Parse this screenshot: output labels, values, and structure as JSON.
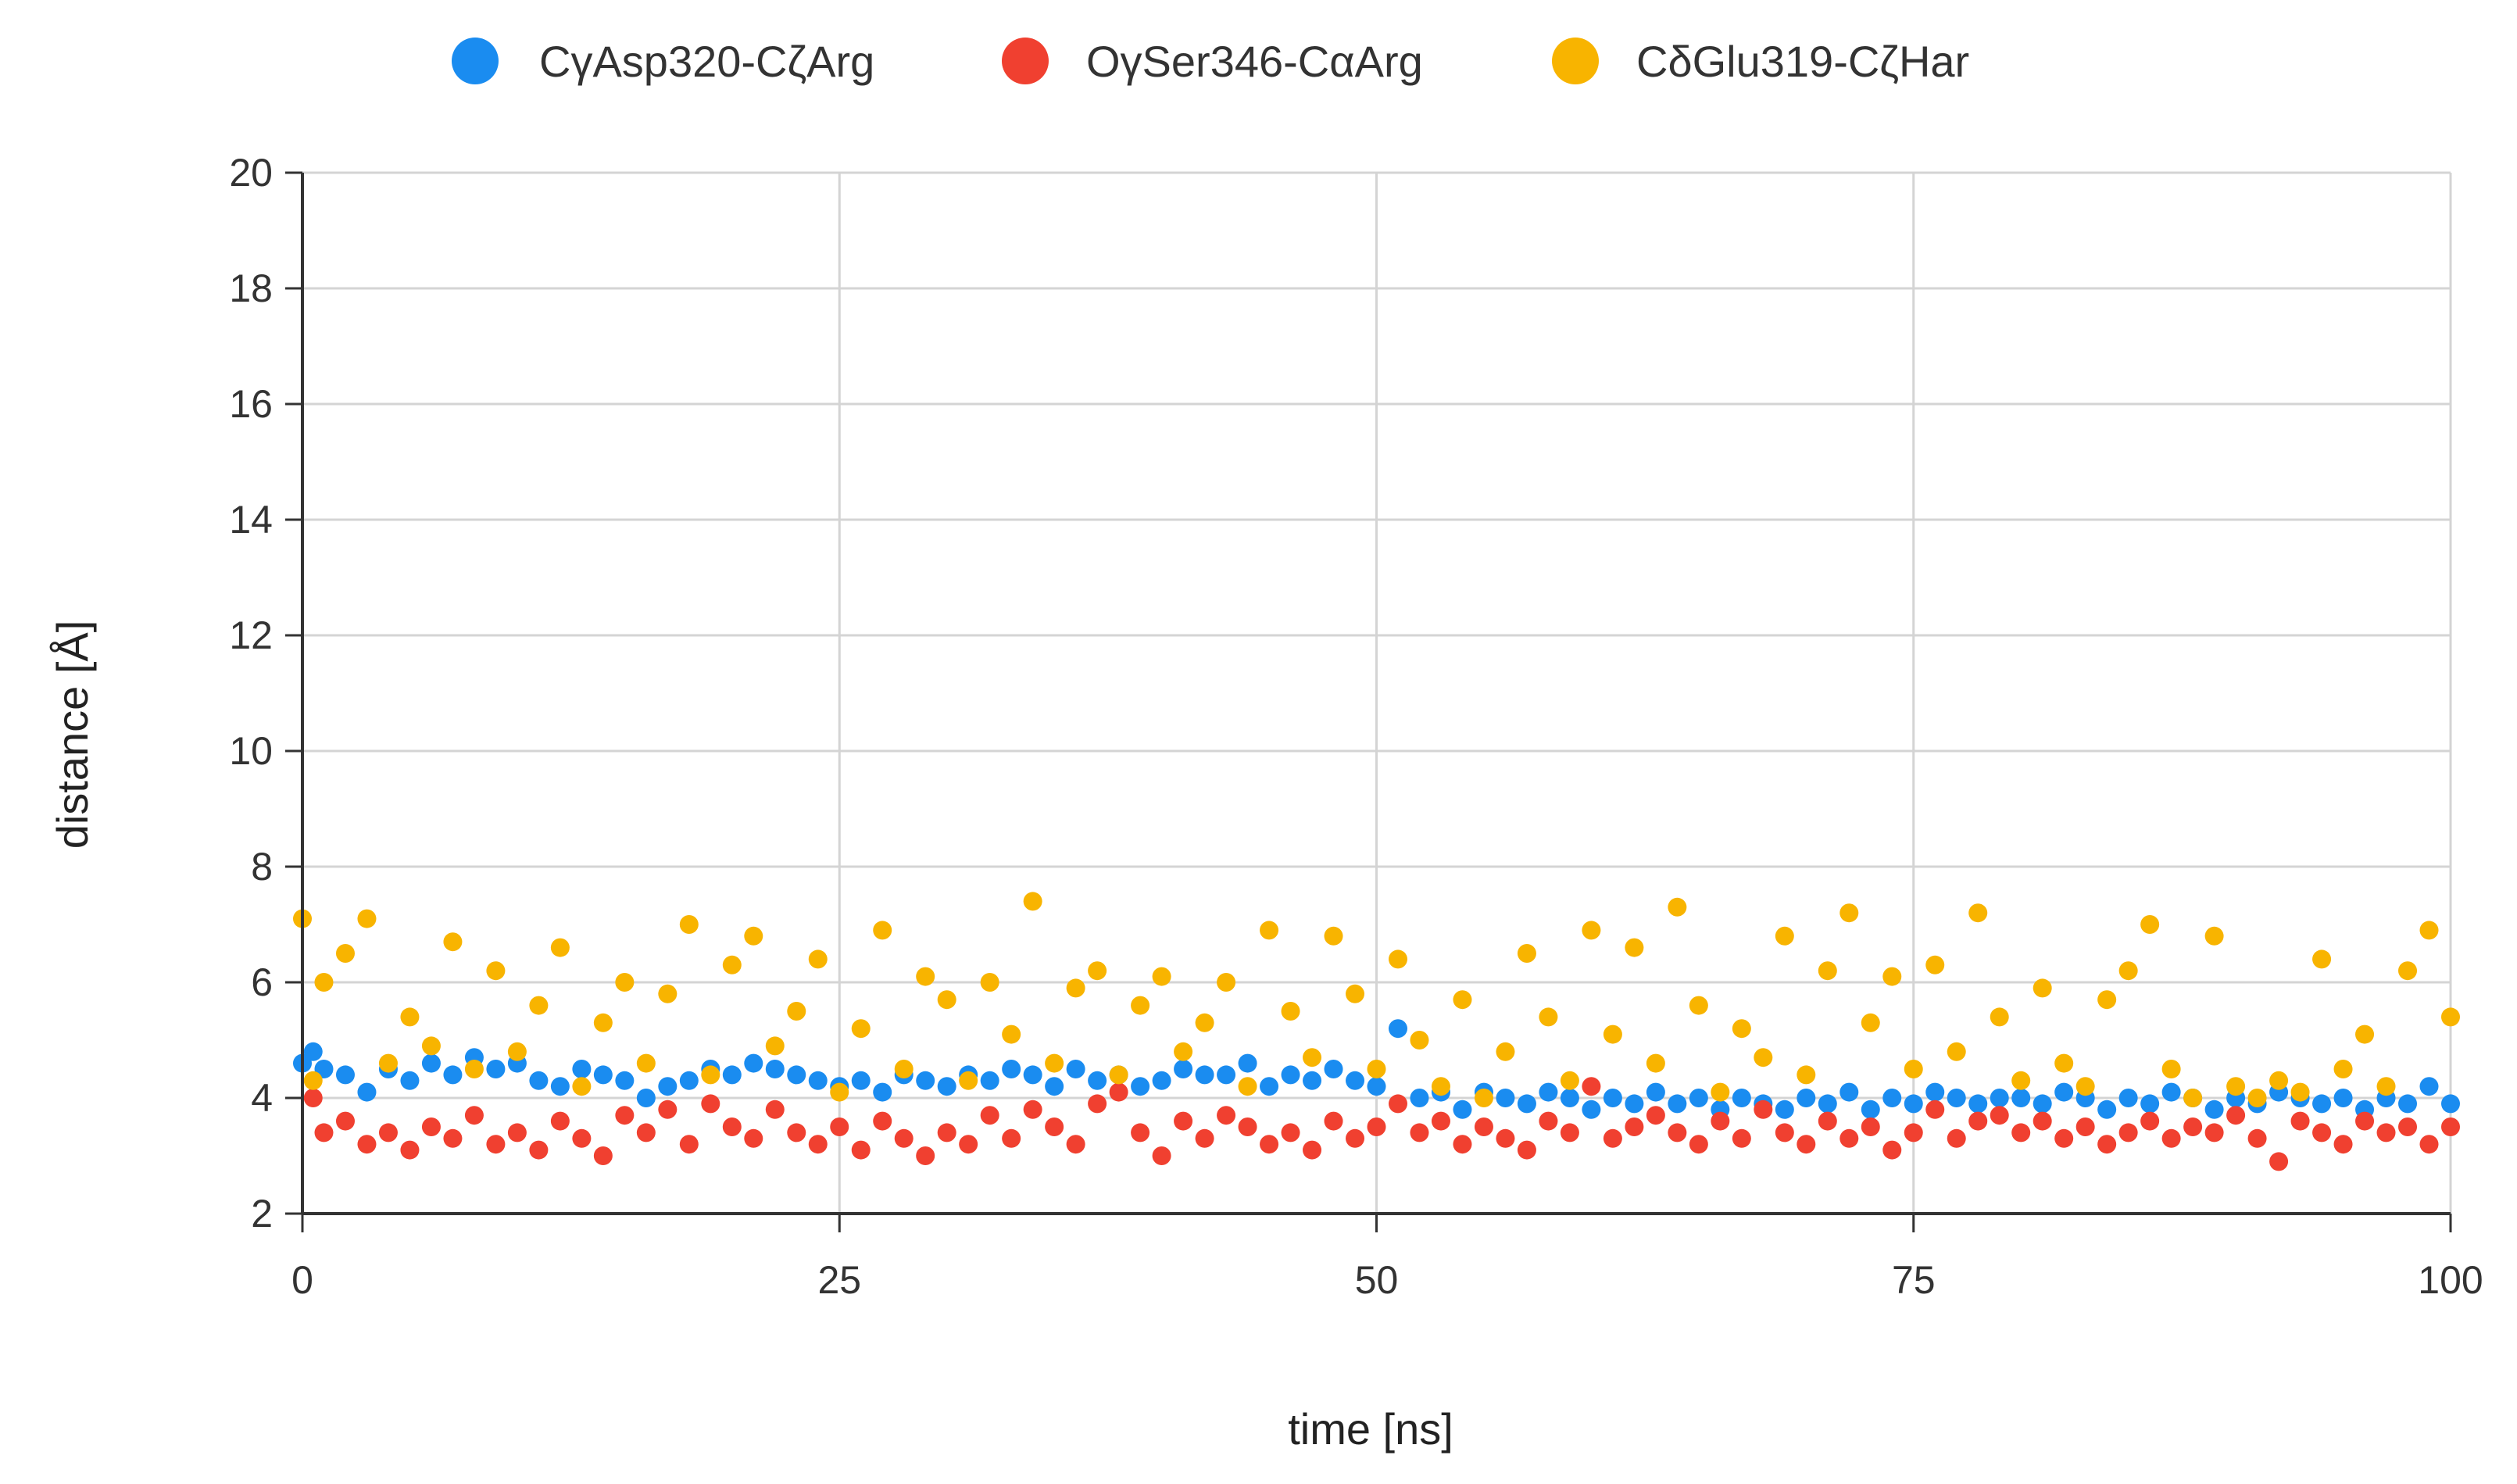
{
  "chart_data": {
    "type": "scatter",
    "title": "",
    "xlabel": "time [ns]",
    "ylabel": "distance [Å]",
    "xlim": [
      0,
      100
    ],
    "ylim": [
      2,
      20
    ],
    "x_ticks": [
      "0",
      "25",
      "50",
      "75",
      "100"
    ],
    "y_ticks": [
      "2",
      "4",
      "6",
      "8",
      "10",
      "12",
      "14",
      "16",
      "18",
      "20"
    ],
    "grid": true,
    "legend_position": "top",
    "series": [
      {
        "name": "CγAsp320-CζArg",
        "color": "#1a8cf0",
        "points": [
          [
            0.0,
            4.6
          ],
          [
            0.5,
            4.8
          ],
          [
            1.0,
            4.5
          ],
          [
            2.0,
            4.4
          ],
          [
            3.0,
            4.1
          ],
          [
            4.0,
            4.5
          ],
          [
            5.0,
            4.3
          ],
          [
            6.0,
            4.6
          ],
          [
            7.0,
            4.4
          ],
          [
            8.0,
            4.7
          ],
          [
            9.0,
            4.5
          ],
          [
            10.0,
            4.6
          ],
          [
            11.0,
            4.3
          ],
          [
            12.0,
            4.2
          ],
          [
            13.0,
            4.5
          ],
          [
            14.0,
            4.4
          ],
          [
            15.0,
            4.3
          ],
          [
            16.0,
            4.0
          ],
          [
            17.0,
            4.2
          ],
          [
            18.0,
            4.3
          ],
          [
            19.0,
            4.5
          ],
          [
            20.0,
            4.4
          ],
          [
            21.0,
            4.6
          ],
          [
            22.0,
            4.5
          ],
          [
            23.0,
            4.4
          ],
          [
            24.0,
            4.3
          ],
          [
            25.0,
            4.2
          ],
          [
            26.0,
            4.3
          ],
          [
            27.0,
            4.1
          ],
          [
            28.0,
            4.4
          ],
          [
            29.0,
            4.3
          ],
          [
            30.0,
            4.2
          ],
          [
            31.0,
            4.4
          ],
          [
            32.0,
            4.3
          ],
          [
            33.0,
            4.5
          ],
          [
            34.0,
            4.4
          ],
          [
            35.0,
            4.2
          ],
          [
            36.0,
            4.5
          ],
          [
            37.0,
            4.3
          ],
          [
            38.0,
            4.4
          ],
          [
            39.0,
            4.2
          ],
          [
            40.0,
            4.3
          ],
          [
            41.0,
            4.5
          ],
          [
            42.0,
            4.4
          ],
          [
            43.0,
            4.4
          ],
          [
            44.0,
            4.6
          ],
          [
            45.0,
            4.2
          ],
          [
            46.0,
            4.4
          ],
          [
            47.0,
            4.3
          ],
          [
            48.0,
            4.5
          ],
          [
            49.0,
            4.3
          ],
          [
            50.0,
            4.2
          ],
          [
            51.0,
            5.2
          ],
          [
            52.0,
            4.0
          ],
          [
            53.0,
            4.1
          ],
          [
            54.0,
            3.8
          ],
          [
            55.0,
            4.1
          ],
          [
            56.0,
            4.0
          ],
          [
            57.0,
            3.9
          ],
          [
            58.0,
            4.1
          ],
          [
            59.0,
            4.0
          ],
          [
            60.0,
            3.8
          ],
          [
            61.0,
            4.0
          ],
          [
            62.0,
            3.9
          ],
          [
            63.0,
            4.1
          ],
          [
            64.0,
            3.9
          ],
          [
            65.0,
            4.0
          ],
          [
            66.0,
            3.8
          ],
          [
            67.0,
            4.0
          ],
          [
            68.0,
            3.9
          ],
          [
            69.0,
            3.8
          ],
          [
            70.0,
            4.0
          ],
          [
            71.0,
            3.9
          ],
          [
            72.0,
            4.1
          ],
          [
            73.0,
            3.8
          ],
          [
            74.0,
            4.0
          ],
          [
            75.0,
            3.9
          ],
          [
            76.0,
            4.1
          ],
          [
            77.0,
            4.0
          ],
          [
            78.0,
            3.9
          ],
          [
            79.0,
            4.0
          ],
          [
            80.0,
            4.0
          ],
          [
            81.0,
            3.9
          ],
          [
            82.0,
            4.1
          ],
          [
            83.0,
            4.0
          ],
          [
            84.0,
            3.8
          ],
          [
            85.0,
            4.0
          ],
          [
            86.0,
            3.9
          ],
          [
            87.0,
            4.1
          ],
          [
            88.0,
            4.0
          ],
          [
            89.0,
            3.8
          ],
          [
            90.0,
            4.0
          ],
          [
            91.0,
            3.9
          ],
          [
            92.0,
            4.1
          ],
          [
            93.0,
            4.0
          ],
          [
            94.0,
            3.9
          ],
          [
            95.0,
            4.0
          ],
          [
            96.0,
            3.8
          ],
          [
            97.0,
            4.0
          ],
          [
            98.0,
            3.9
          ],
          [
            99.0,
            4.2
          ],
          [
            100.0,
            3.9
          ]
        ]
      },
      {
        "name": "OγSer346-CαArg",
        "color": "#f04030",
        "points": [
          [
            0.5,
            4.0
          ],
          [
            1.0,
            3.4
          ],
          [
            2.0,
            3.6
          ],
          [
            3.0,
            3.2
          ],
          [
            4.0,
            3.4
          ],
          [
            5.0,
            3.1
          ],
          [
            6.0,
            3.5
          ],
          [
            7.0,
            3.3
          ],
          [
            8.0,
            3.7
          ],
          [
            9.0,
            3.2
          ],
          [
            10.0,
            3.4
          ],
          [
            11.0,
            3.1
          ],
          [
            12.0,
            3.6
          ],
          [
            13.0,
            3.3
          ],
          [
            14.0,
            3.0
          ],
          [
            15.0,
            3.7
          ],
          [
            16.0,
            3.4
          ],
          [
            17.0,
            3.8
          ],
          [
            18.0,
            3.2
          ],
          [
            19.0,
            3.9
          ],
          [
            20.0,
            3.5
          ],
          [
            21.0,
            3.3
          ],
          [
            22.0,
            3.8
          ],
          [
            23.0,
            3.4
          ],
          [
            24.0,
            3.2
          ],
          [
            25.0,
            3.5
          ],
          [
            26.0,
            3.1
          ],
          [
            27.0,
            3.6
          ],
          [
            28.0,
            3.3
          ],
          [
            29.0,
            3.0
          ],
          [
            30.0,
            3.4
          ],
          [
            31.0,
            3.2
          ],
          [
            32.0,
            3.7
          ],
          [
            33.0,
            3.3
          ],
          [
            34.0,
            3.8
          ],
          [
            35.0,
            3.5
          ],
          [
            36.0,
            3.2
          ],
          [
            37.0,
            3.9
          ],
          [
            38.0,
            4.1
          ],
          [
            39.0,
            3.4
          ],
          [
            40.0,
            3.0
          ],
          [
            41.0,
            3.6
          ],
          [
            42.0,
            3.3
          ],
          [
            43.0,
            3.7
          ],
          [
            44.0,
            3.5
          ],
          [
            45.0,
            3.2
          ],
          [
            46.0,
            3.4
          ],
          [
            47.0,
            3.1
          ],
          [
            48.0,
            3.6
          ],
          [
            49.0,
            3.3
          ],
          [
            50.0,
            3.5
          ],
          [
            51.0,
            3.9
          ],
          [
            52.0,
            3.4
          ],
          [
            53.0,
            3.6
          ],
          [
            54.0,
            3.2
          ],
          [
            55.0,
            3.5
          ],
          [
            56.0,
            3.3
          ],
          [
            57.0,
            3.1
          ],
          [
            58.0,
            3.6
          ],
          [
            59.0,
            3.4
          ],
          [
            60.0,
            4.2
          ],
          [
            61.0,
            3.3
          ],
          [
            62.0,
            3.5
          ],
          [
            63.0,
            3.7
          ],
          [
            64.0,
            3.4
          ],
          [
            65.0,
            3.2
          ],
          [
            66.0,
            3.6
          ],
          [
            67.0,
            3.3
          ],
          [
            68.0,
            3.8
          ],
          [
            69.0,
            3.4
          ],
          [
            70.0,
            3.2
          ],
          [
            71.0,
            3.6
          ],
          [
            72.0,
            3.3
          ],
          [
            73.0,
            3.5
          ],
          [
            74.0,
            3.1
          ],
          [
            75.0,
            3.4
          ],
          [
            76.0,
            3.8
          ],
          [
            77.0,
            3.3
          ],
          [
            78.0,
            3.6
          ],
          [
            79.0,
            3.7
          ],
          [
            80.0,
            3.4
          ],
          [
            81.0,
            3.6
          ],
          [
            82.0,
            3.3
          ],
          [
            83.0,
            3.5
          ],
          [
            84.0,
            3.2
          ],
          [
            85.0,
            3.4
          ],
          [
            86.0,
            3.6
          ],
          [
            87.0,
            3.3
          ],
          [
            88.0,
            3.5
          ],
          [
            89.0,
            3.4
          ],
          [
            90.0,
            3.7
          ],
          [
            91.0,
            3.3
          ],
          [
            92.0,
            2.9
          ],
          [
            93.0,
            3.6
          ],
          [
            94.0,
            3.4
          ],
          [
            95.0,
            3.2
          ],
          [
            96.0,
            3.6
          ],
          [
            97.0,
            3.4
          ],
          [
            98.0,
            3.5
          ],
          [
            99.0,
            3.2
          ],
          [
            100.0,
            3.5
          ]
        ]
      },
      {
        "name": "CδGlu319-CζHar",
        "color": "#f8b400",
        "points": [
          [
            0.0,
            7.1
          ],
          [
            0.5,
            4.3
          ],
          [
            1.0,
            6.0
          ],
          [
            2.0,
            6.5
          ],
          [
            3.0,
            7.1
          ],
          [
            4.0,
            4.6
          ],
          [
            5.0,
            5.4
          ],
          [
            6.0,
            4.9
          ],
          [
            7.0,
            6.7
          ],
          [
            8.0,
            4.5
          ],
          [
            9.0,
            6.2
          ],
          [
            10.0,
            4.8
          ],
          [
            11.0,
            5.6
          ],
          [
            12.0,
            6.6
          ],
          [
            13.0,
            4.2
          ],
          [
            14.0,
            5.3
          ],
          [
            15.0,
            6.0
          ],
          [
            16.0,
            4.6
          ],
          [
            17.0,
            5.8
          ],
          [
            18.0,
            7.0
          ],
          [
            19.0,
            4.4
          ],
          [
            20.0,
            6.3
          ],
          [
            21.0,
            6.8
          ],
          [
            22.0,
            4.9
          ],
          [
            23.0,
            5.5
          ],
          [
            24.0,
            6.4
          ],
          [
            25.0,
            4.1
          ],
          [
            26.0,
            5.2
          ],
          [
            27.0,
            6.9
          ],
          [
            28.0,
            4.5
          ],
          [
            29.0,
            6.1
          ],
          [
            30.0,
            5.7
          ],
          [
            31.0,
            4.3
          ],
          [
            32.0,
            6.0
          ],
          [
            33.0,
            5.1
          ],
          [
            34.0,
            7.4
          ],
          [
            35.0,
            4.6
          ],
          [
            36.0,
            5.9
          ],
          [
            37.0,
            6.2
          ],
          [
            38.0,
            4.4
          ],
          [
            39.0,
            5.6
          ],
          [
            40.0,
            6.1
          ],
          [
            41.0,
            4.8
          ],
          [
            42.0,
            5.3
          ],
          [
            43.0,
            6.0
          ],
          [
            44.0,
            4.2
          ],
          [
            45.0,
            6.9
          ],
          [
            46.0,
            5.5
          ],
          [
            47.0,
            4.7
          ],
          [
            48.0,
            6.8
          ],
          [
            49.0,
            5.8
          ],
          [
            50.0,
            4.5
          ],
          [
            51.0,
            6.4
          ],
          [
            52.0,
            5.0
          ],
          [
            53.0,
            4.2
          ],
          [
            54.0,
            5.7
          ],
          [
            55.0,
            4.0
          ],
          [
            56.0,
            4.8
          ],
          [
            57.0,
            6.5
          ],
          [
            58.0,
            5.4
          ],
          [
            59.0,
            4.3
          ],
          [
            60.0,
            6.9
          ],
          [
            61.0,
            5.1
          ],
          [
            62.0,
            6.6
          ],
          [
            63.0,
            4.6
          ],
          [
            64.0,
            7.3
          ],
          [
            65.0,
            5.6
          ],
          [
            66.0,
            4.1
          ],
          [
            67.0,
            5.2
          ],
          [
            68.0,
            4.7
          ],
          [
            69.0,
            6.8
          ],
          [
            70.0,
            4.4
          ],
          [
            71.0,
            6.2
          ],
          [
            72.0,
            7.2
          ],
          [
            73.0,
            5.3
          ],
          [
            74.0,
            6.1
          ],
          [
            75.0,
            4.5
          ],
          [
            76.0,
            6.3
          ],
          [
            77.0,
            4.8
          ],
          [
            78.0,
            7.2
          ],
          [
            79.0,
            5.4
          ],
          [
            80.0,
            4.3
          ],
          [
            81.0,
            5.9
          ],
          [
            82.0,
            4.6
          ],
          [
            83.0,
            4.2
          ],
          [
            84.0,
            5.7
          ],
          [
            85.0,
            6.2
          ],
          [
            86.0,
            7.0
          ],
          [
            87.0,
            4.5
          ],
          [
            88.0,
            4.0
          ],
          [
            89.0,
            6.8
          ],
          [
            90.0,
            4.2
          ],
          [
            91.0,
            4.0
          ],
          [
            92.0,
            4.3
          ],
          [
            93.0,
            4.1
          ],
          [
            94.0,
            6.4
          ],
          [
            95.0,
            4.5
          ],
          [
            96.0,
            5.1
          ],
          [
            97.0,
            4.2
          ],
          [
            98.0,
            6.2
          ],
          [
            99.0,
            6.9
          ],
          [
            100.0,
            5.4
          ]
        ]
      }
    ]
  }
}
